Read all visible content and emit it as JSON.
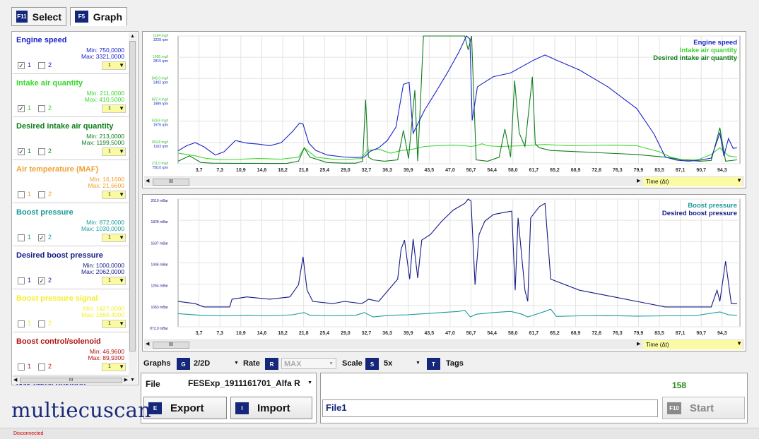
{
  "tabs": [
    {
      "key": "F11",
      "label": "Select",
      "active": false
    },
    {
      "key": "F5",
      "label": "Graph",
      "active": true
    }
  ],
  "signals": [
    {
      "name": "Engine speed",
      "color": "#1a24c8",
      "min": "Min: 750,0000",
      "max": "Max: 3321,0000",
      "c1": true,
      "c2": false,
      "l1": "1",
      "l2": "2",
      "sel": "1"
    },
    {
      "name": "Intake air quantity",
      "color": "#3ad62e",
      "min": "Min: 211,0000",
      "max": "Max: 410,5000",
      "c1": true,
      "c2": false,
      "l1": "1",
      "l2": "2",
      "sel": "1"
    },
    {
      "name": "Desired intake air quantity",
      "color": "#0e7d1a",
      "min": "Min: 213,0000",
      "max": "Max: 1199,5000",
      "c1": true,
      "c2": false,
      "l1": "1",
      "l2": "2",
      "sel": "1"
    },
    {
      "name": "Air temperature (MAF)",
      "color": "#f0a030",
      "min": "Min: 16,1600",
      "max": "Max: 21,6600",
      "c1": false,
      "c2": false,
      "l1": "1",
      "l2": "2",
      "sel": "1"
    },
    {
      "name": "Boost pressure",
      "color": "#1a9a9a",
      "min": "Min: 872,0000",
      "max": "Max: 1030,0000",
      "c1": false,
      "c2": true,
      "l1": "1",
      "l2": "2",
      "sel": "1"
    },
    {
      "name": "Desired boost pressure",
      "color": "#141a85",
      "min": "Min: 1000,0000",
      "max": "Max: 2062,0000",
      "c1": false,
      "c2": true,
      "l1": "1",
      "l2": "2",
      "sel": "1"
    },
    {
      "name": "Boost pressure signal",
      "color": "#f4ee2c",
      "min": "Min: 1427,0000",
      "max": "Max: 1660,4000",
      "c1": false,
      "c2": false,
      "l1": "1",
      "l2": "2",
      "sel": "1"
    },
    {
      "name": "Boost control/solenoid",
      "color": "#b11414",
      "min": "Min: 46,9600",
      "max": "Max: 89,9300",
      "c1": false,
      "c2": false,
      "l1": "1",
      "l2": "2",
      "sel": "1"
    },
    {
      "name": "Gas pedal position",
      "color": "#1a24c8"
    }
  ],
  "sidebar_scroll_label": "III",
  "graph1": {
    "y_labels": [
      [
        "1164 mg/l",
        "3228 rpm"
      ],
      [
        "1005 mg/l",
        "2815 rpm"
      ],
      [
        "846,0 mg/l",
        "2402 rpm"
      ],
      [
        "687,4 mg/l",
        "1989 rpm"
      ],
      [
        "528,6 mg/l",
        "1576 rpm"
      ],
      [
        "369,8 mg/l",
        "1163 rpm"
      ],
      [
        "211,0 mg/l",
        "750,0 rpm"
      ]
    ],
    "y_label_colors": [
      "#30c030",
      "#1a24c8"
    ],
    "legend": [
      {
        "label": "Engine speed",
        "color": "#1a24c8"
      },
      {
        "label": "Intake air quantity",
        "color": "#3ad62e"
      },
      {
        "label": "Desired intake air quantity",
        "color": "#0e7d1a"
      }
    ]
  },
  "graph2": {
    "y_labels": [
      "2019 mBar",
      "1828 mBar",
      "1637 mBar",
      "1446 mBar",
      "1254 mBar",
      "1063 mBar",
      "872,0 mBar"
    ],
    "y_label_color": "#141a85",
    "legend": [
      {
        "label": "Boost pressure",
        "color": "#1a9a9a"
      },
      {
        "label": "Desired boost pressure",
        "color": "#141a85"
      }
    ]
  },
  "x_ticks": [
    "3,7",
    "7,3",
    "10,9",
    "14,6",
    "18,2",
    "21,8",
    "25,4",
    "29,0",
    "32,7",
    "36,3",
    "39,9",
    "43,5",
    "47,0",
    "50,7",
    "54,4",
    "58,0",
    "61,7",
    "65,2",
    "68,9",
    "72,6",
    "76,3",
    "79,9",
    "83,5",
    "87,1",
    "90,7",
    "94,3"
  ],
  "time_label": "Time (Δt)",
  "scroll_thumb": "III",
  "chart_data": [
    {
      "type": "line",
      "title": "",
      "xlabel": "Time (Δt)",
      "xlim": [
        0,
        98
      ],
      "series": [
        {
          "name": "Engine speed",
          "axis": "rpm",
          "ylim": [
            750,
            3228
          ],
          "x": [
            0,
            1.5,
            3,
            4.5,
            6.5,
            8,
            10,
            12,
            14,
            16,
            18,
            20,
            21.2,
            21.8,
            22.8,
            24,
            26,
            29,
            31,
            32.5,
            33.5,
            35,
            36.5,
            38,
            39.3,
            40.3,
            41,
            43,
            45,
            47,
            49,
            50.3,
            50.9,
            51.3,
            52.2,
            53,
            55,
            58,
            62,
            64,
            66,
            70,
            75,
            80,
            83,
            85,
            87,
            89,
            91,
            93,
            94.5,
            95.2,
            96,
            96.8,
            97.5
          ],
          "y": [
            1000,
            1100,
            1160,
            1080,
            920,
            980,
            1200,
            1150,
            1130,
            1100,
            1160,
            1380,
            1540,
            1520,
            1150,
            1010,
            920,
            880,
            870,
            880,
            990,
            1060,
            1200,
            1460,
            2290,
            2330,
            1340,
            1790,
            2150,
            2520,
            2920,
            3228,
            3170,
            1590,
            2240,
            2300,
            2440,
            2510,
            2760,
            2860,
            2760,
            2570,
            2240,
            1820,
            1330,
            880,
            820,
            800,
            820,
            860,
            1350,
            900,
            1240,
            1050,
            1060
          ]
        },
        {
          "name": "Intake air quantity",
          "axis": "mg/l",
          "ylim": [
            211,
            1164
          ],
          "x": [
            0,
            3,
            5,
            8,
            11,
            14,
            18,
            21,
            22,
            24,
            28,
            32,
            33,
            35,
            37,
            39,
            41,
            42,
            43,
            45,
            48,
            50,
            51,
            52,
            53,
            54,
            56,
            60,
            64,
            68,
            72,
            76,
            80,
            84,
            86,
            88,
            91,
            93,
            94.5,
            96,
            97.5
          ],
          "y": [
            290,
            270,
            250,
            240,
            245,
            250,
            245,
            260,
            330,
            260,
            240,
            250,
            310,
            320,
            290,
            310,
            320,
            330,
            340,
            345,
            350,
            345,
            340,
            345,
            360,
            345,
            340,
            345,
            355,
            345,
            348,
            350,
            345,
            300,
            260,
            240,
            245,
            280,
            330,
            270,
            260
          ]
        },
        {
          "name": "Desired intake air quantity",
          "axis": "mg/l",
          "ylim": [
            211,
            1164
          ],
          "x": [
            0,
            2,
            4,
            6,
            10,
            14,
            17,
            19,
            21,
            22,
            23,
            26,
            29,
            31,
            32.2,
            32.7,
            33.2,
            34,
            36,
            38.3,
            39.3,
            40.2,
            41.3,
            41.8,
            42.8,
            43.4,
            44,
            47,
            49,
            50,
            50.6,
            51.2,
            52,
            54,
            56,
            57,
            58,
            58.7,
            59.5,
            60.5,
            61.8,
            62.3,
            63,
            65,
            70,
            75,
            80,
            85,
            88,
            91,
            93,
            94.5,
            95.5,
            97.5
          ],
          "y": [
            230,
            270,
            220,
            215,
            214,
            214,
            213,
            214,
            230,
            330,
            260,
            220,
            215,
            215,
            230,
            690,
            260,
            240,
            230,
            240,
            460,
            250,
            760,
            230,
            1164,
            1164,
            1164,
            1164,
            1164,
            1164,
            1060,
            1164,
            240,
            230,
            260,
            470,
            260,
            830,
            440,
            340,
            860,
            360,
            330,
            310,
            300,
            290,
            280,
            260,
            240,
            230,
            235,
            480,
            230,
            240
          ]
        }
      ]
    },
    {
      "type": "line",
      "title": "",
      "xlabel": "Time (Δt)",
      "xlim": [
        0,
        98
      ],
      "ylim": [
        872,
        2019
      ],
      "series": [
        {
          "name": "Boost pressure",
          "x": [
            0,
            4,
            8,
            12,
            16,
            20,
            22,
            23,
            27,
            31,
            32.5,
            34,
            37,
            40,
            43,
            46,
            49,
            50,
            51,
            52,
            53,
            55,
            58,
            60,
            61,
            64,
            65,
            66,
            70,
            75,
            80,
            85,
            90,
            94.5,
            96,
            97.5
          ],
          "y": [
            990,
            975,
            970,
            975,
            970,
            980,
            1000,
            975,
            970,
            975,
            1000,
            960,
            975,
            980,
            990,
            1000,
            1010,
            1020,
            960,
            985,
            990,
            1000,
            1010,
            985,
            960,
            1010,
            1030,
            965,
            970,
            972,
            968,
            970,
            970,
            1005,
            980,
            975
          ]
        },
        {
          "name": "Desired boost pressure",
          "x": [
            0,
            3,
            4.5,
            5.5,
            7.5,
            9,
            9.4,
            12,
            16,
            19.5,
            21,
            21.8,
            22.5,
            23.5,
            27,
            29,
            32,
            32.7,
            33.2,
            35,
            38.3,
            38.9,
            39.5,
            40.4,
            41,
            41.8,
            42.5,
            44,
            46,
            48,
            50,
            50.6,
            51.1,
            51.8,
            52.5,
            53.5,
            55,
            57,
            58.2,
            58.8,
            59.3,
            60.5,
            61,
            61.5,
            63,
            64,
            65,
            70,
            75,
            80,
            85,
            90,
            93,
            94,
            94.5,
            95.5,
            96.5,
            97.5
          ],
          "y": [
            1100,
            1080,
            1050,
            1050,
            1050,
            1050,
            1120,
            1140,
            1120,
            1140,
            1250,
            1500,
            1200,
            1100,
            1080,
            1100,
            1080,
            1100,
            1120,
            1100,
            1300,
            1570,
            1650,
            1300,
            1660,
            1310,
            1650,
            1700,
            1820,
            1920,
            1980,
            2019,
            2000,
            1250,
            1700,
            1820,
            1880,
            1900,
            1910,
            1200,
            1850,
            1200,
            1100,
            1850,
            1950,
            1980,
            1300,
            1200,
            1150,
            1100,
            1050,
            1050,
            1050,
            1200,
            1100,
            1460,
            1080,
            1080
          ]
        }
      ]
    }
  ],
  "controls": {
    "graphs_label": "Graphs",
    "graphs_key": "G",
    "graphs_value": "2/2D",
    "rate_label": "Rate",
    "rate_key": "R",
    "rate_value": "MAX",
    "scale_label": "Scale",
    "scale_key": "S",
    "scale_value": "5x",
    "tags_key": "T",
    "tags_label": "Tags"
  },
  "file_panel": {
    "label": "File",
    "value": "FESExp_1911161701_Alfa R",
    "export_key": "E",
    "export_label": "Export",
    "import_key": "I",
    "import_label": "Import"
  },
  "right_panel": {
    "counter": "158",
    "counter_color": "#2a8a1a",
    "input_value": "File1",
    "start_key": "F10",
    "start_label": "Start"
  },
  "logo": "multiecuscan",
  "status": "Disconnected"
}
